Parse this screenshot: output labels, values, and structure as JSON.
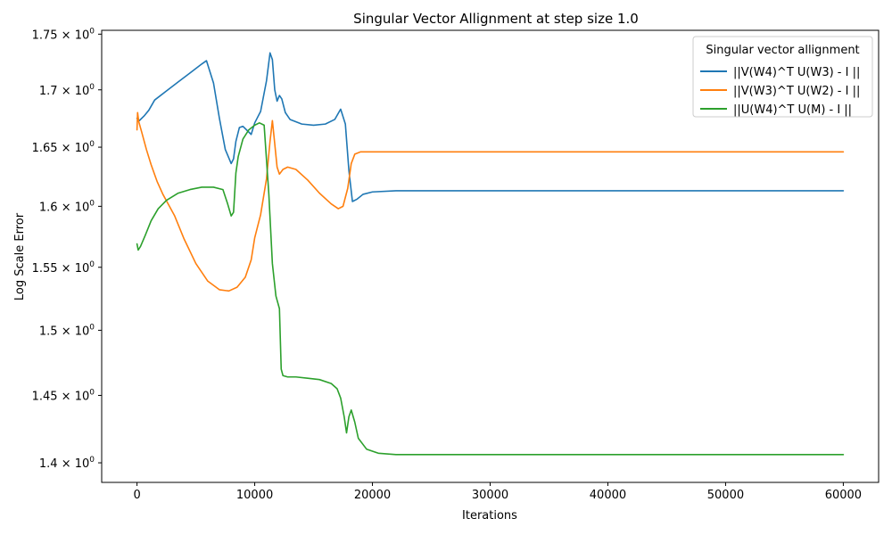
{
  "chart_data": {
    "type": "line",
    "title": "Singular Vector Allignment at step size 1.0",
    "xlabel": "Iterations",
    "ylabel": "Log Scale Error",
    "yscale": "log",
    "xlim": [
      -3000,
      63000
    ],
    "ylim": [
      1.3858,
      1.7535
    ],
    "x_ticks": [
      0,
      10000,
      20000,
      30000,
      40000,
      50000,
      60000
    ],
    "x_tick_labels": [
      "0",
      "10000",
      "20000",
      "30000",
      "40000",
      "50000",
      "60000"
    ],
    "y_ticks": [
      1.4,
      1.45,
      1.5,
      1.55,
      1.6,
      1.65,
      1.7,
      1.75
    ],
    "y_tick_labels": [
      {
        "mantissa": "1.4",
        "base": "10",
        "exp": "0"
      },
      {
        "mantissa": "1.45",
        "base": "10",
        "exp": "0"
      },
      {
        "mantissa": "1.5",
        "base": "10",
        "exp": "0"
      },
      {
        "mantissa": "1.55",
        "base": "10",
        "exp": "0"
      },
      {
        "mantissa": "1.6",
        "base": "10",
        "exp": "0"
      },
      {
        "mantissa": "1.65",
        "base": "10",
        "exp": "0"
      },
      {
        "mantissa": "1.7",
        "base": "10",
        "exp": "0"
      },
      {
        "mantissa": "1.75",
        "base": "10",
        "exp": "0"
      }
    ],
    "grid": false,
    "legend": {
      "title": "Singular vector allignment",
      "position": "top-right"
    },
    "series": [
      {
        "name": "||V(W4)^T U(W3) - I ||",
        "color": "#1f77b4",
        "x": [
          0,
          200,
          600,
          1000,
          1500,
          2500,
          3500,
          4500,
          5500,
          5900,
          6500,
          7000,
          7500,
          8000,
          8200,
          8400,
          8700,
          9000,
          9400,
          9700,
          10000,
          10500,
          11000,
          11300,
          11500,
          11700,
          11900,
          12100,
          12300,
          12600,
          13000,
          14000,
          15000,
          16000,
          16800,
          17300,
          17700,
          18000,
          18300,
          18700,
          19200,
          20000,
          22000,
          30000,
          40000,
          50000,
          60000
        ],
        "y": [
          1.675,
          1.673,
          1.677,
          1.682,
          1.691,
          1.699,
          1.707,
          1.715,
          1.723,
          1.726,
          1.706,
          1.675,
          1.648,
          1.636,
          1.64,
          1.655,
          1.667,
          1.668,
          1.664,
          1.661,
          1.671,
          1.681,
          1.708,
          1.733,
          1.727,
          1.7,
          1.69,
          1.695,
          1.692,
          1.68,
          1.674,
          1.67,
          1.669,
          1.67,
          1.674,
          1.683,
          1.67,
          1.63,
          1.604,
          1.606,
          1.61,
          1.612,
          1.613,
          1.613,
          1.613,
          1.613,
          1.613
        ]
      },
      {
        "name": "||V(W3)^T U(W2) - I ||",
        "color": "#ff7f0e",
        "x": [
          0,
          50,
          150,
          400,
          800,
          1200,
          1700,
          2200,
          2700,
          3200,
          4000,
          5000,
          6000,
          7000,
          7800,
          8500,
          9200,
          9700,
          10000,
          10500,
          11000,
          11300,
          11500,
          11700,
          11900,
          12100,
          12400,
          12800,
          13500,
          14500,
          15500,
          16500,
          17100,
          17500,
          17900,
          18200,
          18500,
          19000,
          20000,
          22000,
          30000,
          40000,
          50000,
          60000
        ],
        "y": [
          1.665,
          1.68,
          1.672,
          1.663,
          1.648,
          1.635,
          1.621,
          1.61,
          1.601,
          1.592,
          1.573,
          1.553,
          1.539,
          1.532,
          1.531,
          1.534,
          1.542,
          1.556,
          1.574,
          1.593,
          1.623,
          1.655,
          1.673,
          1.653,
          1.633,
          1.627,
          1.631,
          1.633,
          1.631,
          1.622,
          1.611,
          1.602,
          1.598,
          1.6,
          1.615,
          1.636,
          1.644,
          1.646,
          1.646,
          1.646,
          1.646,
          1.646,
          1.646,
          1.646
        ]
      },
      {
        "name": "||U(W4)^T U(M) - I ||",
        "color": "#2ca02c",
        "x": [
          0,
          100,
          300,
          700,
          1200,
          1800,
          2500,
          3500,
          4500,
          5500,
          6500,
          7300,
          7700,
          8000,
          8200,
          8400,
          8600,
          9000,
          9500,
          10000,
          10400,
          10800,
          11200,
          11500,
          11800,
          12100,
          12250,
          12400,
          12800,
          13500,
          14500,
          15500,
          16500,
          17000,
          17300,
          17600,
          17800,
          18000,
          18200,
          18500,
          18800,
          19500,
          20500,
          22000,
          30000,
          40000,
          50000,
          60000
        ],
        "y": [
          1.569,
          1.564,
          1.567,
          1.576,
          1.588,
          1.598,
          1.605,
          1.611,
          1.614,
          1.616,
          1.616,
          1.614,
          1.602,
          1.592,
          1.595,
          1.628,
          1.642,
          1.657,
          1.665,
          1.669,
          1.671,
          1.669,
          1.61,
          1.553,
          1.527,
          1.517,
          1.47,
          1.465,
          1.464,
          1.464,
          1.463,
          1.462,
          1.459,
          1.455,
          1.448,
          1.434,
          1.422,
          1.434,
          1.439,
          1.43,
          1.418,
          1.41,
          1.407,
          1.406,
          1.406,
          1.406,
          1.406,
          1.406
        ]
      }
    ]
  }
}
